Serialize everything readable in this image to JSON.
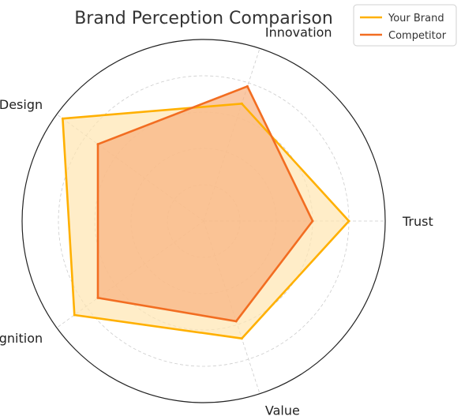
{
  "chart_data": {
    "type": "radar",
    "title": "Brand Perception Comparison",
    "axes": [
      "Trust",
      "Innovation",
      "Design",
      "Recognition",
      "Value"
    ],
    "rmax": 5,
    "grid": true,
    "legend_position": "top-right",
    "series": [
      {
        "name": "Your Brand",
        "values": [
          4,
          3.4,
          4.8,
          4.4,
          3.4
        ],
        "color": "#FFB000",
        "fill": "#FFE5B0"
      },
      {
        "name": "Competitor",
        "values": [
          3,
          3.9,
          3.6,
          3.6,
          2.9
        ],
        "color": "#F26D21",
        "fill": "#F8B17F"
      }
    ]
  }
}
